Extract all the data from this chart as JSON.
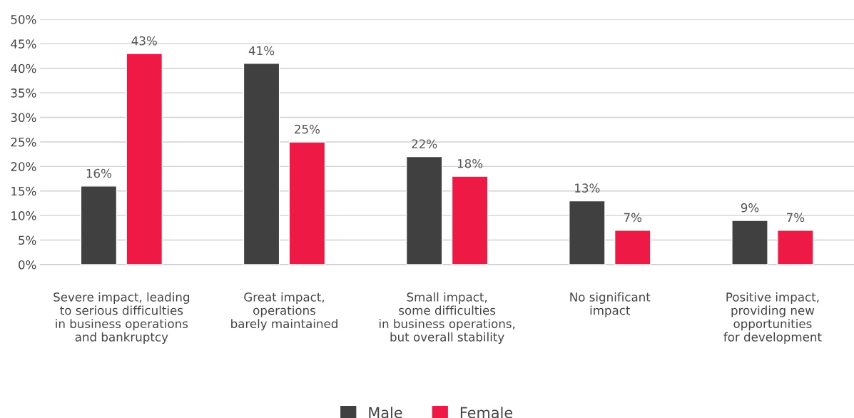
{
  "chart_data": {
    "type": "bar",
    "categories": [
      "Severe impact, leading\nto serious difficulties\nin business operations\nand bankruptcy",
      "Great impact,\noperations\nbarely maintained",
      "Small impact,\nsome difficulties\nin business operations,\nbut overall stability",
      "No significant\nimpact",
      "Positive impact,\nproviding new\nopportunities\nfor development"
    ],
    "series": [
      {
        "name": "Male",
        "color": "#404040",
        "values": [
          16,
          41,
          22,
          13,
          9
        ],
        "value_labels": [
          "16%",
          "41%",
          "22%",
          "13%",
          "9%"
        ]
      },
      {
        "name": "Female",
        "color": "#ee1944",
        "values": [
          43,
          25,
          18,
          7,
          7
        ],
        "value_labels": [
          "43%",
          "25%",
          "18%",
          "7%",
          "7%"
        ]
      }
    ],
    "ylim": [
      0,
      50
    ],
    "yticks": [
      {
        "value": 0,
        "label": "0%"
      },
      {
        "value": 5,
        "label": "5%"
      },
      {
        "value": 10,
        "label": "10%"
      },
      {
        "value": 15,
        "label": "15%"
      },
      {
        "value": 20,
        "label": "20%"
      },
      {
        "value": 25,
        "label": "25%"
      },
      {
        "value": 30,
        "label": "30%"
      },
      {
        "value": 35,
        "label": "35%"
      },
      {
        "value": 40,
        "label": "40%"
      },
      {
        "value": 45,
        "label": "45%"
      },
      {
        "value": 50,
        "label": "50%"
      }
    ],
    "grid": "y",
    "legend": "bottom"
  }
}
